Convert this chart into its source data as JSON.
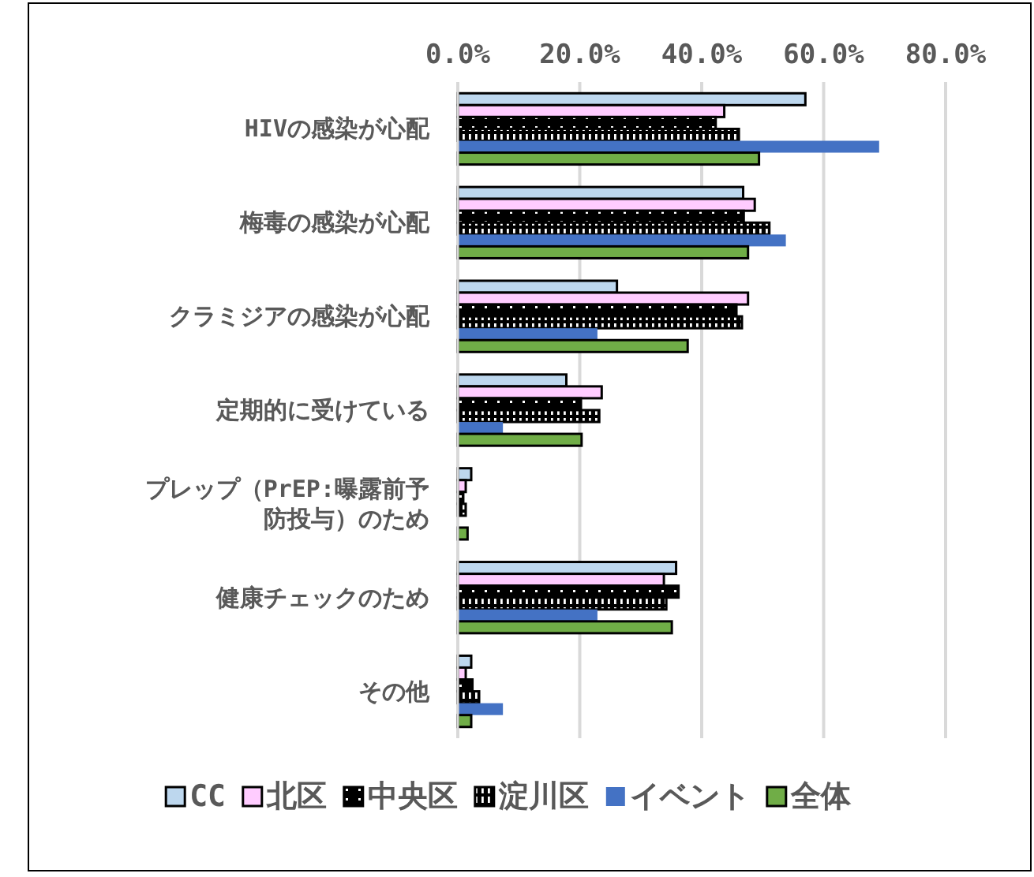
{
  "chart_data": {
    "type": "bar",
    "orientation": "horizontal",
    "categories": [
      "HIVの感染が心配",
      "梅毒の感染が心配",
      "クラミジアの感染が心配",
      "定期的に受けている",
      "プレップ（PrEP:曝露前予防投与）のため",
      "健康チェックのため",
      "その他"
    ],
    "series": [
      {
        "name": "CC",
        "color": "#bdd7ee",
        "values": [
          57.0,
          46.8,
          26.1,
          17.8,
          2.2,
          35.8,
          2.2
        ]
      },
      {
        "name": "北区",
        "color": "#ffccff",
        "values": [
          43.7,
          48.7,
          47.6,
          23.6,
          1.3,
          33.8,
          1.3
        ]
      },
      {
        "name": "中央区",
        "color": "#000000",
        "values": [
          42.3,
          46.9,
          45.7,
          20.2,
          0.9,
          36.2,
          2.4
        ]
      },
      {
        "name": "淀川区",
        "color": "#000000",
        "values": [
          46.1,
          51.1,
          46.6,
          23.2,
          1.3,
          34.2,
          3.5
        ]
      },
      {
        "name": "イベント",
        "color": "#4472c4",
        "values": [
          69.1,
          53.8,
          22.9,
          7.4,
          0,
          22.9,
          7.4
        ]
      },
      {
        "name": "全体",
        "color": "#70ad47",
        "values": [
          49.4,
          47.6,
          37.7,
          20.3,
          1.6,
          35.1,
          2.2
        ]
      }
    ],
    "xlim": [
      0,
      80
    ],
    "xticks": [
      {
        "value": 0,
        "label": "0.0%"
      },
      {
        "value": 20,
        "label": "20.0%"
      },
      {
        "value": 40,
        "label": "40.0%"
      },
      {
        "value": 60,
        "label": "60.0%"
      },
      {
        "value": 80,
        "label": "80.0%"
      }
    ],
    "grid": "x",
    "legend": "bottom"
  }
}
